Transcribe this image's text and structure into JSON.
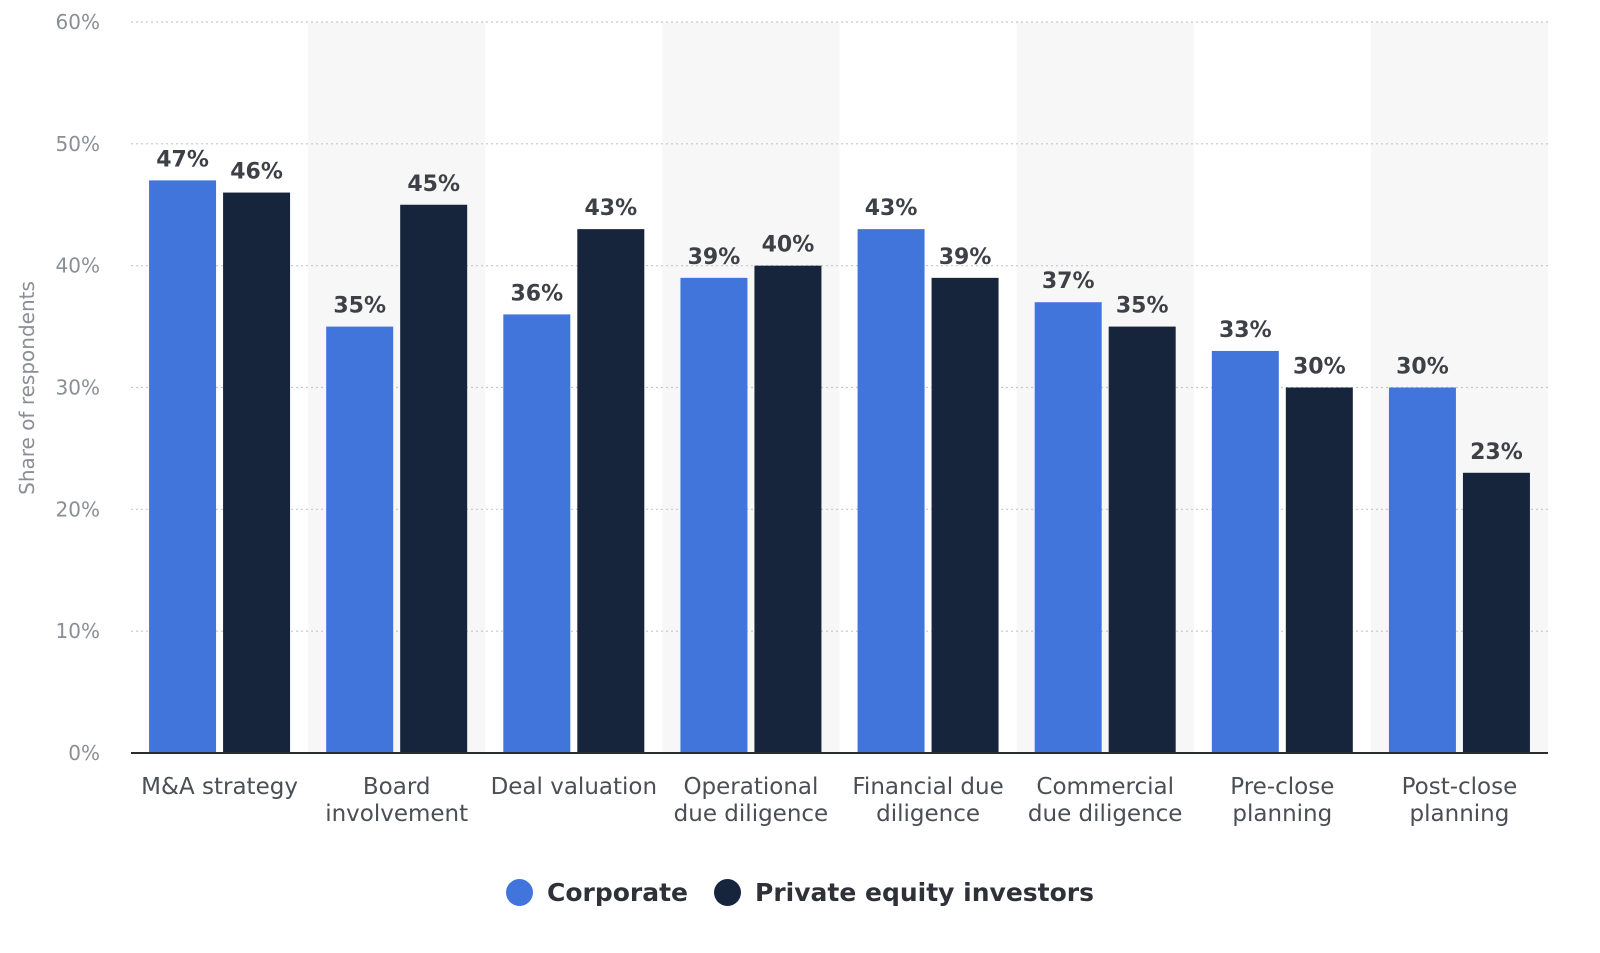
{
  "chart_data": {
    "type": "bar",
    "ylabel": "Share of respondents",
    "ylim": [
      0,
      60
    ],
    "y_ticks": [
      "0%",
      "10%",
      "20%",
      "30%",
      "40%",
      "50%",
      "60%"
    ],
    "y_tick_values": [
      0,
      10,
      20,
      30,
      40,
      50,
      60
    ],
    "categories": [
      [
        "M&A strategy"
      ],
      [
        "Board",
        "involvement"
      ],
      [
        "Deal valuation"
      ],
      [
        "Operational",
        "due diligence"
      ],
      [
        "Financial due",
        "diligence"
      ],
      [
        "Commercial",
        "due diligence"
      ],
      [
        "Pre-close",
        "planning"
      ],
      [
        "Post-close",
        "planning"
      ]
    ],
    "series": [
      {
        "name": "Corporate",
        "color": "#4175dc",
        "values": [
          47,
          35,
          36,
          39,
          43,
          37,
          33,
          30
        ],
        "labels": [
          "47%",
          "35%",
          "36%",
          "39%",
          "43%",
          "37%",
          "33%",
          "30%"
        ]
      },
      {
        "name": "Private equity investors",
        "color": "#17253c",
        "values": [
          46,
          45,
          43,
          40,
          39,
          35,
          30,
          23
        ],
        "labels": [
          "46%",
          "45%",
          "43%",
          "40%",
          "39%",
          "35%",
          "30%",
          "23%"
        ]
      }
    ],
    "grid": true,
    "gridline_style": "dotted",
    "alternate_column_shading": true,
    "legend_position": "bottom"
  },
  "legend": {
    "corporate_label": "Corporate",
    "pe_label": "Private equity investors",
    "corporate_color": "#4175dc",
    "pe_color": "#17253c"
  }
}
